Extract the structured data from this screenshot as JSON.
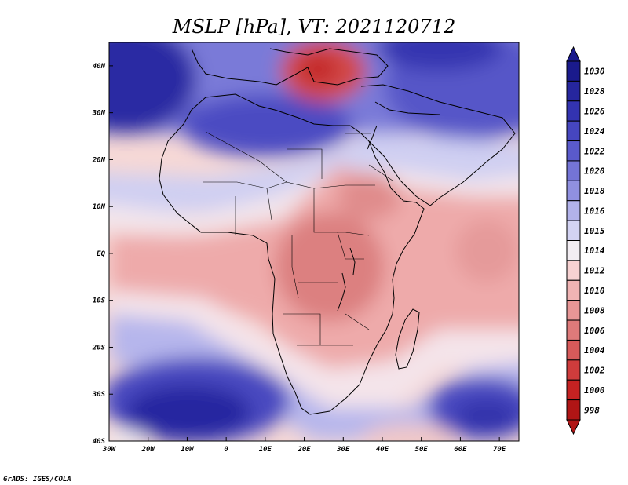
{
  "title": "MSLP [hPa], VT: 2021120712",
  "credit": "GrADS: IGES/COLA",
  "map": {
    "region": "Africa",
    "lon_range": [
      -30,
      75
    ],
    "lat_range": [
      -40,
      45
    ],
    "x_ticks": [
      {
        "lon": -30,
        "label": "30W"
      },
      {
        "lon": -20,
        "label": "20W"
      },
      {
        "lon": -10,
        "label": "10W"
      },
      {
        "lon": 0,
        "label": "0"
      },
      {
        "lon": 10,
        "label": "10E"
      },
      {
        "lon": 20,
        "label": "20E"
      },
      {
        "lon": 30,
        "label": "30E"
      },
      {
        "lon": 40,
        "label": "40E"
      },
      {
        "lon": 50,
        "label": "50E"
      },
      {
        "lon": 60,
        "label": "60E"
      },
      {
        "lon": 70,
        "label": "70E"
      }
    ],
    "y_ticks": [
      {
        "lat": 40,
        "label": "40N"
      },
      {
        "lat": 30,
        "label": "30N"
      },
      {
        "lat": 20,
        "label": "20N"
      },
      {
        "lat": 10,
        "label": "10N"
      },
      {
        "lat": 0,
        "label": "EQ"
      },
      {
        "lat": -10,
        "label": "10S"
      },
      {
        "lat": -20,
        "label": "20S"
      },
      {
        "lat": -30,
        "label": "30S"
      },
      {
        "lat": -40,
        "label": "40S"
      }
    ],
    "features": [
      {
        "name": "high-north-atlantic",
        "lon": -30,
        "lat": 36,
        "value": 1028
      },
      {
        "name": "high-arabian",
        "lon": 57,
        "lat": 27,
        "value": 1022
      },
      {
        "name": "high-south-atlantic",
        "lon": -10,
        "lat": -34,
        "value": 1026
      },
      {
        "name": "high-south-indian",
        "lon": 66,
        "lat": -36,
        "value": 1024
      },
      {
        "name": "low-eastern-mediterranean",
        "lon": 27,
        "lat": 39,
        "value": 1002
      },
      {
        "name": "low-central-africa",
        "lon": 24,
        "lat": -3,
        "value": 1008
      }
    ]
  },
  "colorbar": {
    "levels": [
      "1030",
      "1028",
      "1026",
      "1024",
      "1022",
      "1020",
      "1018",
      "1016",
      "1015",
      "1014",
      "1012",
      "1010",
      "1008",
      "1006",
      "1004",
      "1002",
      "1000",
      "998"
    ],
    "colors": [
      "#1a1a8c",
      "#26269e",
      "#3333b0",
      "#4646bf",
      "#5a5acb",
      "#7474d6",
      "#9090e0",
      "#b2b2ea",
      "#d3d3f3",
      "#f3eef3",
      "#f7d2d2",
      "#f0b4b4",
      "#e79696",
      "#de7a7a",
      "#d75a5a",
      "#cf3c3c",
      "#c52222",
      "#b01515"
    ]
  }
}
